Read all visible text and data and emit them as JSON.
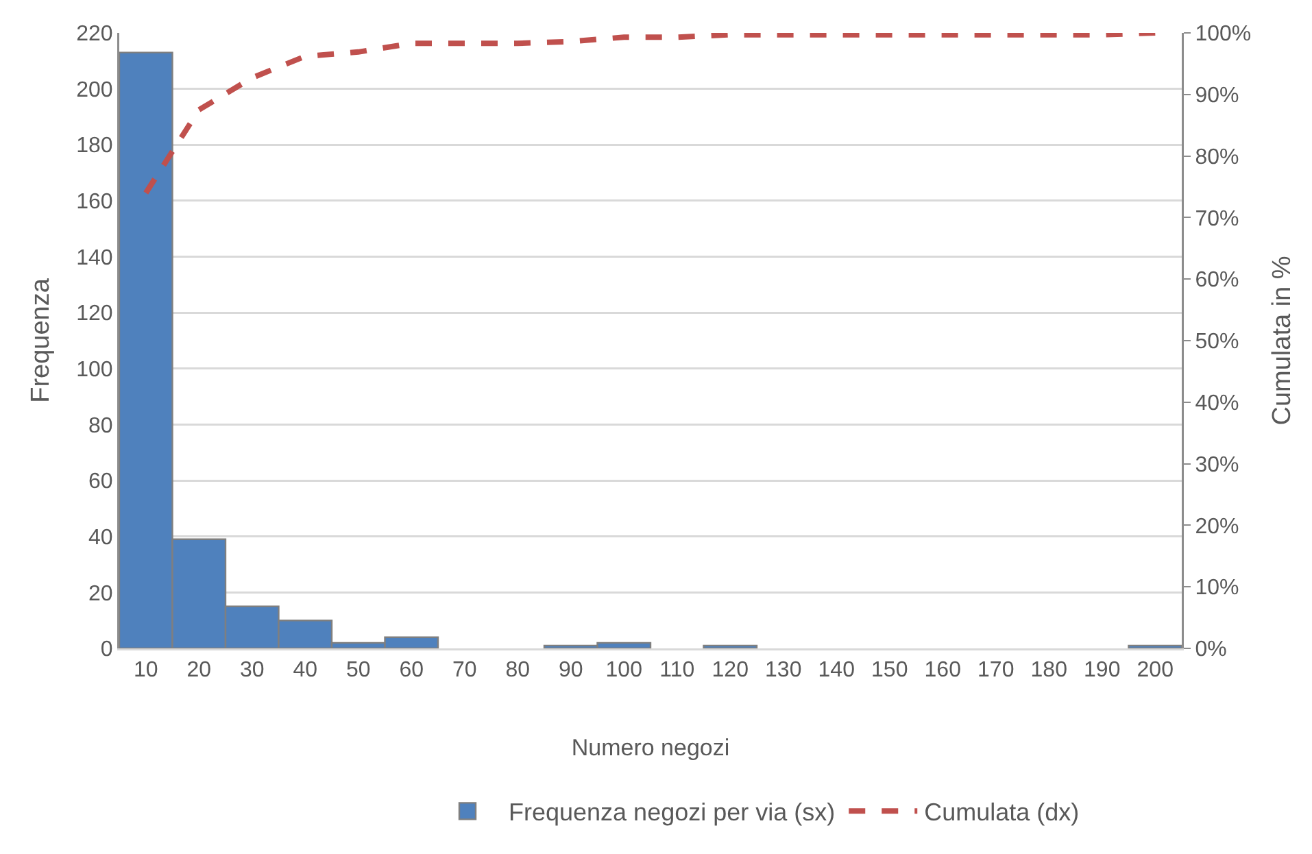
{
  "chart_data": {
    "type": "bar",
    "xlabel": "Numero negozi",
    "ylabel": "Frequenza",
    "y2label": "Cumulata in %",
    "categories": [
      "10",
      "20",
      "30",
      "40",
      "50",
      "60",
      "70",
      "80",
      "90",
      "100",
      "110",
      "120",
      "130",
      "140",
      "150",
      "160",
      "170",
      "180",
      "190",
      "200"
    ],
    "series": [
      {
        "name": "Frequenza negozi per via (sx)",
        "color": "#4f81bd",
        "values": [
          213,
          39,
          15,
          10,
          2,
          4,
          0,
          0,
          1,
          2,
          0,
          1,
          0,
          0,
          0,
          0,
          0,
          0,
          0,
          1
        ]
      },
      {
        "name": "Cumulata (dx)",
        "type": "line",
        "axis": "y2",
        "color": "#c0504d",
        "values": [
          74.0,
          87.5,
          92.7,
          96.2,
          96.9,
          98.3,
          98.3,
          98.3,
          98.6,
          99.3,
          99.3,
          99.7,
          99.7,
          99.7,
          99.7,
          99.7,
          99.7,
          99.7,
          99.7,
          100
        ]
      }
    ],
    "ylim": [
      0,
      220
    ],
    "yticks": [
      0,
      20,
      40,
      60,
      80,
      100,
      120,
      140,
      160,
      180,
      200,
      220
    ],
    "y2lim": [
      0,
      100
    ],
    "y2ticks": [
      {
        "value": 0,
        "label": "0%"
      },
      {
        "value": 10,
        "label": "10%"
      },
      {
        "value": 20,
        "label": "20%"
      },
      {
        "value": 30,
        "label": "30%"
      },
      {
        "value": 40,
        "label": "40%"
      },
      {
        "value": 50,
        "label": "50%"
      },
      {
        "value": 60,
        "label": "60%"
      },
      {
        "value": 70,
        "label": "70%"
      },
      {
        "value": 80,
        "label": "80%"
      },
      {
        "value": 90,
        "label": "90%"
      },
      {
        "value": 100,
        "label": "100%"
      }
    ],
    "grid": "y",
    "legend": "bottom",
    "line_style": "dashed"
  }
}
